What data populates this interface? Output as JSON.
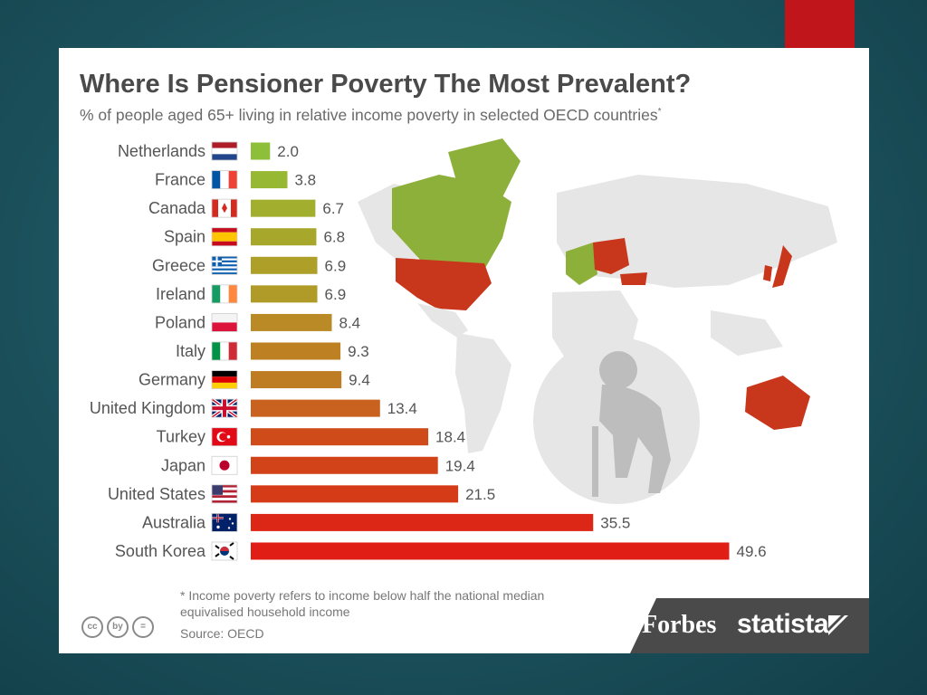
{
  "chart_data": {
    "type": "bar",
    "orientation": "horizontal",
    "title": "Where Is Pensioner Poverty The Most Prevalent?",
    "subtitle": "% of people aged 65+ living in relative income poverty in selected OECD countries",
    "subtitle_marker": "*",
    "categories": [
      "Netherlands",
      "France",
      "Canada",
      "Spain",
      "Greece",
      "Ireland",
      "Poland",
      "Italy",
      "Germany",
      "United Kingdom",
      "Turkey",
      "Japan",
      "United States",
      "Australia",
      "South Korea"
    ],
    "values": [
      2.0,
      3.8,
      6.7,
      6.8,
      6.9,
      6.9,
      8.4,
      9.3,
      9.4,
      13.4,
      18.4,
      19.4,
      21.5,
      35.5,
      49.6
    ],
    "value_labels": [
      "2.0",
      "3.8",
      "6.7",
      "6.8",
      "6.9",
      "6.9",
      "8.4",
      "9.3",
      "9.4",
      "13.4",
      "18.4",
      "19.4",
      "21.5",
      "35.5",
      "49.6"
    ],
    "bar_colors": [
      "#8dbf3a",
      "#97b833",
      "#a2ae2d",
      "#a7a82b",
      "#ae9f29",
      "#b09a28",
      "#b98a25",
      "#bd8124",
      "#be7d23",
      "#c8621e",
      "#cf4c1a",
      "#d24319",
      "#d63b18",
      "#dc2716",
      "#e01e15"
    ],
    "xlim": [
      0,
      50
    ],
    "map_colors": {
      "green": "#8db03a",
      "red": "#c8361b",
      "land": "#e6e6e6"
    }
  },
  "footnote": "* Income poverty refers to income below half the national median equivalised household income",
  "source": "Source: OECD",
  "license_icons": [
    "cc",
    "by",
    "="
  ],
  "brand": {
    "forbes": "Forbes",
    "statista": "statista"
  }
}
